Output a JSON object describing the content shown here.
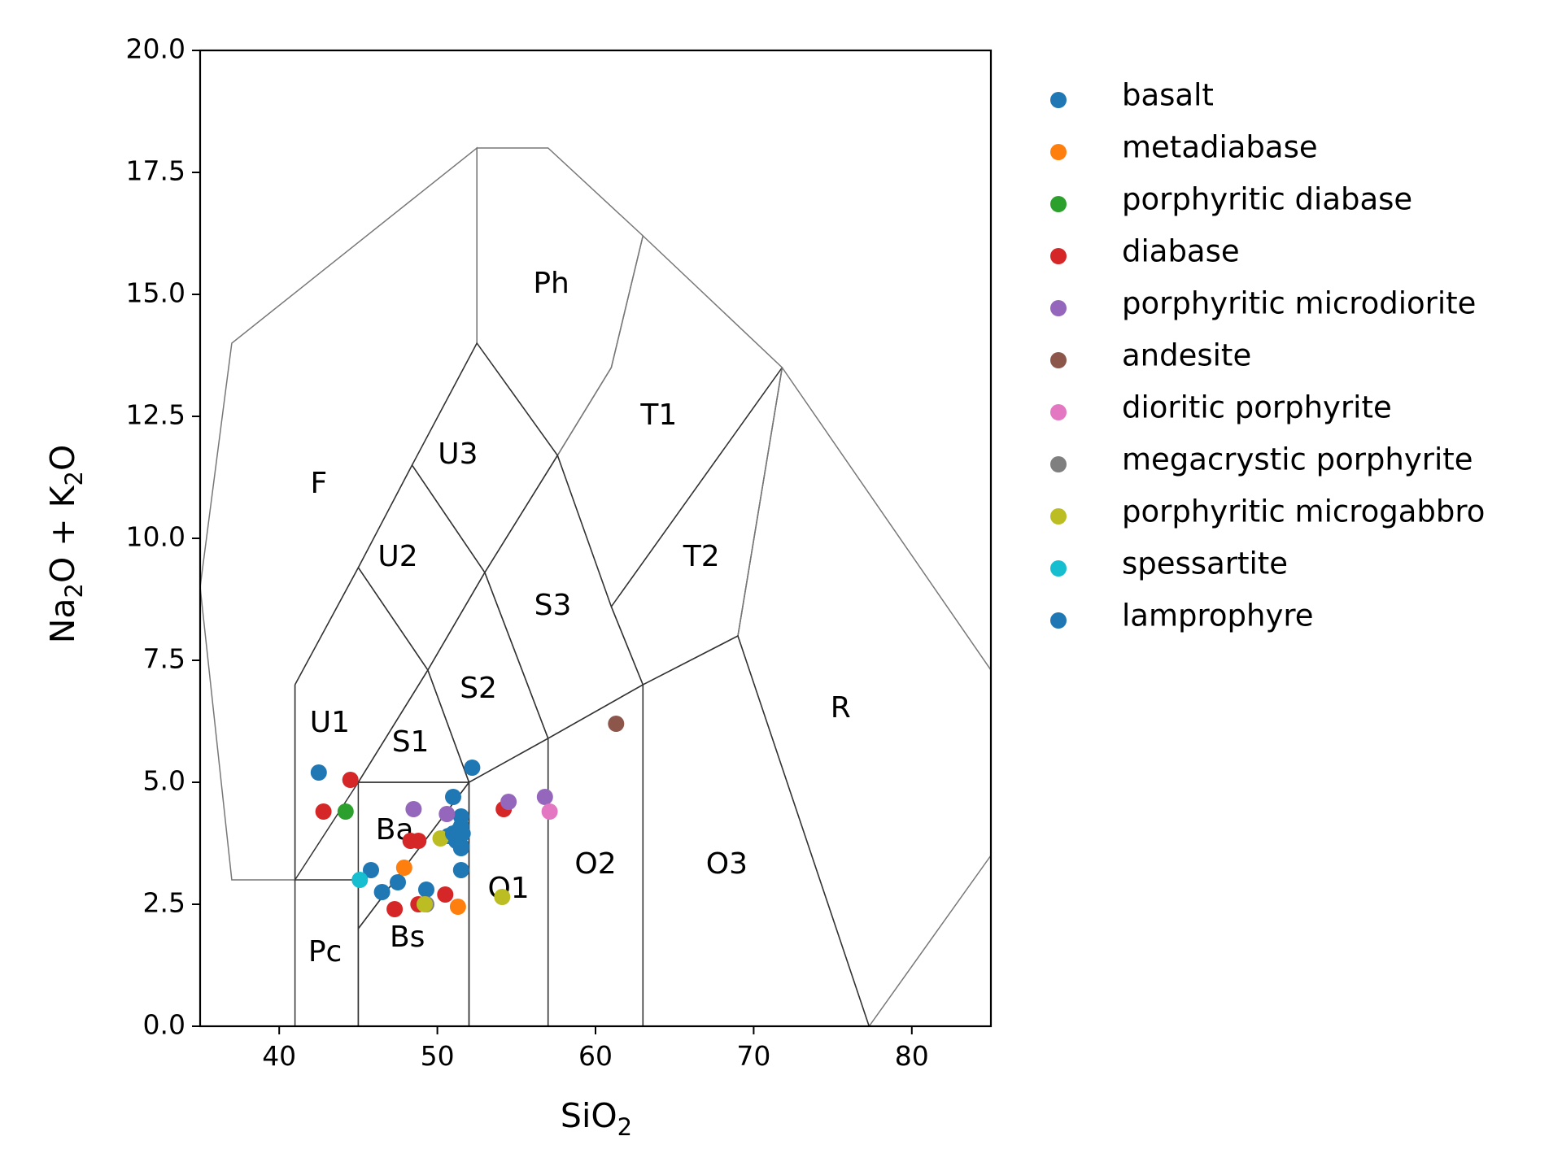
{
  "chart_data": {
    "type": "scatter",
    "title": "",
    "xlabel": {
      "main": "SiO",
      "sub": "2"
    },
    "ylabel": {
      "p1": "Na",
      "s1": "2",
      "p2": "O + K",
      "s2": "2",
      "p3": "O"
    },
    "xlim": [
      35,
      85
    ],
    "ylim": [
      0,
      20
    ],
    "xticks": [
      40,
      50,
      60,
      70,
      80
    ],
    "xtick_labels": [
      "40",
      "50",
      "60",
      "70",
      "80"
    ],
    "yticks": [
      0,
      2.5,
      5,
      7.5,
      10,
      12.5,
      15,
      17.5,
      20
    ],
    "ytick_labels": [
      "0.0",
      "2.5",
      "5.0",
      "7.5",
      "10.0",
      "12.5",
      "15.0",
      "17.5",
      "20.0"
    ],
    "grid": false,
    "legend_position": "outside-right",
    "fields": [
      {
        "name": "F",
        "label": "F",
        "label_pos": [
          42.5,
          11.1
        ],
        "points": [
          [
            41,
            7
          ],
          [
            41,
            3
          ],
          [
            37,
            3
          ],
          [
            35,
            9
          ],
          [
            37,
            14
          ],
          [
            52.5,
            18
          ],
          [
            52.5,
            14
          ],
          [
            48.4,
            11.5
          ],
          [
            45,
            9.4
          ],
          [
            41,
            7
          ]
        ]
      },
      {
        "name": "Ph",
        "label": "Ph",
        "label_pos": [
          57.2,
          15.2
        ],
        "points": [
          [
            52.5,
            14
          ],
          [
            52.5,
            18
          ],
          [
            57,
            18
          ],
          [
            63,
            16.2
          ],
          [
            61,
            13.5
          ],
          [
            57.6,
            11.7
          ],
          [
            52.5,
            14
          ]
        ]
      },
      {
        "name": "T1",
        "label": "T1",
        "label_pos": [
          64,
          12.5
        ],
        "points": [
          [
            57.6,
            11.7
          ],
          [
            61,
            13.5
          ],
          [
            63,
            16.2
          ],
          [
            71.8,
            13.5
          ],
          [
            61,
            8.6
          ],
          [
            57.6,
            11.7
          ]
        ]
      },
      {
        "name": "T2",
        "label": "T2",
        "label_pos": [
          66.7,
          9.6
        ],
        "points": [
          [
            61,
            8.6
          ],
          [
            71.8,
            13.5
          ],
          [
            69,
            8
          ],
          [
            63,
            7
          ],
          [
            61,
            8.6
          ]
        ]
      },
      {
        "name": "R",
        "label": "R",
        "label_pos": [
          75.5,
          6.5
        ],
        "points": [
          [
            71.8,
            13.5
          ],
          [
            85,
            7.3
          ],
          [
            85,
            3.5
          ],
          [
            77.3,
            0
          ],
          [
            69,
            8
          ],
          [
            71.8,
            13.5
          ]
        ]
      },
      {
        "name": "U3",
        "label": "U3",
        "label_pos": [
          51.3,
          11.7
        ],
        "points": [
          [
            48.4,
            11.5
          ],
          [
            52.5,
            14
          ],
          [
            57.6,
            11.7
          ],
          [
            53,
            9.3
          ],
          [
            48.4,
            11.5
          ]
        ]
      },
      {
        "name": "U2",
        "label": "U2",
        "label_pos": [
          47.5,
          9.6
        ],
        "points": [
          [
            45,
            9.4
          ],
          [
            48.4,
            11.5
          ],
          [
            53,
            9.3
          ],
          [
            49.4,
            7.3
          ],
          [
            45,
            9.4
          ]
        ]
      },
      {
        "name": "U1",
        "label": "U1",
        "label_pos": [
          43.2,
          6.2
        ],
        "points": [
          [
            41,
            7
          ],
          [
            45,
            9.4
          ],
          [
            49.4,
            7.3
          ],
          [
            45,
            5
          ],
          [
            41,
            3
          ],
          [
            41,
            7
          ]
        ]
      },
      {
        "name": "S3",
        "label": "S3",
        "label_pos": [
          57.3,
          8.6
        ],
        "points": [
          [
            53,
            9.3
          ],
          [
            57.6,
            11.7
          ],
          [
            61,
            8.6
          ],
          [
            63,
            7
          ],
          [
            57,
            5.9
          ],
          [
            53,
            9.3
          ]
        ]
      },
      {
        "name": "S2",
        "label": "S2",
        "label_pos": [
          52.6,
          6.9
        ],
        "points": [
          [
            49.4,
            7.3
          ],
          [
            53,
            9.3
          ],
          [
            57,
            5.9
          ],
          [
            52,
            5
          ],
          [
            49.4,
            7.3
          ]
        ]
      },
      {
        "name": "S1",
        "label": "S1",
        "label_pos": [
          48.3,
          5.8
        ],
        "points": [
          [
            45,
            5
          ],
          [
            49.4,
            7.3
          ],
          [
            52,
            5
          ],
          [
            45,
            5
          ]
        ]
      },
      {
        "name": "Ba",
        "label": "Ba",
        "label_pos": [
          47.3,
          4.0
        ],
        "points": [
          [
            45,
            5
          ],
          [
            52,
            5
          ],
          [
            45,
            2
          ],
          [
            45,
            5
          ]
        ]
      },
      {
        "name": "Pc",
        "label": "Pc",
        "label_pos": [
          42.9,
          1.5
        ],
        "points": [
          [
            41,
            3
          ],
          [
            45,
            3
          ],
          [
            45,
            0
          ],
          [
            41,
            0
          ],
          [
            41,
            3
          ]
        ]
      },
      {
        "name": "Bs",
        "label": "Bs",
        "label_pos": [
          48.1,
          1.8
        ],
        "points": [
          [
            45,
            2
          ],
          [
            52,
            5
          ],
          [
            52,
            0
          ],
          [
            45,
            0
          ],
          [
            45,
            2
          ]
        ]
      },
      {
        "name": "O1",
        "label": "O1",
        "label_pos": [
          54.5,
          2.8
        ],
        "points": [
          [
            52,
            5
          ],
          [
            57,
            5.9
          ],
          [
            57,
            0
          ],
          [
            52,
            0
          ],
          [
            52,
            5
          ]
        ]
      },
      {
        "name": "O2",
        "label": "O2",
        "label_pos": [
          60,
          3.3
        ],
        "points": [
          [
            57,
            5.9
          ],
          [
            63,
            7
          ],
          [
            63,
            0
          ],
          [
            57,
            0
          ],
          [
            57,
            5.9
          ]
        ]
      },
      {
        "name": "O3",
        "label": "O3",
        "label_pos": [
          68.3,
          3.3
        ],
        "points": [
          [
            63,
            7
          ],
          [
            69,
            8
          ],
          [
            77.3,
            0
          ],
          [
            63,
            0
          ],
          [
            63,
            7
          ]
        ]
      }
    ],
    "series": [
      {
        "name": "basalt",
        "color": "#1f77b4",
        "points": [
          [
            42.5,
            5.2
          ],
          [
            52.2,
            5.3
          ],
          [
            51.5,
            4.3
          ],
          [
            51,
            4.7
          ],
          [
            51.3,
            4.0
          ],
          [
            51.5,
            4.1
          ],
          [
            51,
            3.9
          ],
          [
            51.5,
            3.7
          ],
          [
            51.2,
            3.8
          ],
          [
            50.7,
            3.9
          ],
          [
            51.5,
            3.2
          ],
          [
            45.8,
            3.2
          ],
          [
            47.5,
            2.95
          ],
          [
            46.5,
            2.75
          ],
          [
            49.3,
            2.8
          ],
          [
            51.6,
            3.95
          ]
        ]
      },
      {
        "name": "metadiabase",
        "color": "#ff7f0e",
        "points": [
          [
            47.9,
            3.25
          ],
          [
            51.3,
            2.45
          ]
        ]
      },
      {
        "name": "porphyritic diabase",
        "color": "#2ca02c",
        "points": [
          [
            44.2,
            4.4
          ]
        ]
      },
      {
        "name": "diabase",
        "color": "#d62728",
        "points": [
          [
            44.5,
            5.05
          ],
          [
            42.8,
            4.4
          ],
          [
            48.3,
            3.8
          ],
          [
            48.8,
            3.8
          ],
          [
            54.2,
            4.45
          ],
          [
            50.5,
            2.7
          ],
          [
            47.3,
            2.4
          ],
          [
            48.8,
            2.5
          ]
        ]
      },
      {
        "name": "porphyritic microdiorite",
        "color": "#9467bd",
        "points": [
          [
            48.5,
            4.45
          ],
          [
            50.6,
            4.35
          ],
          [
            54.5,
            4.6
          ],
          [
            56.8,
            4.7
          ]
        ]
      },
      {
        "name": "andesite",
        "color": "#8c564b",
        "points": [
          [
            61.3,
            6.2
          ]
        ]
      },
      {
        "name": "dioritic porphyrite",
        "color": "#e377c2",
        "points": [
          [
            57.1,
            4.4
          ]
        ]
      },
      {
        "name": "megacrystic porphyrite",
        "color": "#7f7f7f",
        "points": [
          [
            49.3,
            2.5
          ]
        ]
      },
      {
        "name": "porphyritic microgabbro",
        "color": "#bcbd22",
        "points": [
          [
            50.2,
            3.85
          ],
          [
            49.2,
            2.5
          ],
          [
            54.1,
            2.65
          ]
        ]
      },
      {
        "name": "spessartite",
        "color": "#17becf",
        "points": [
          [
            45.1,
            3.0
          ]
        ]
      },
      {
        "name": "lamprophyre",
        "color": "#1f77b4",
        "points": [
          [
            51.5,
            3.65
          ],
          [
            51,
            3.95
          ]
        ]
      }
    ]
  }
}
